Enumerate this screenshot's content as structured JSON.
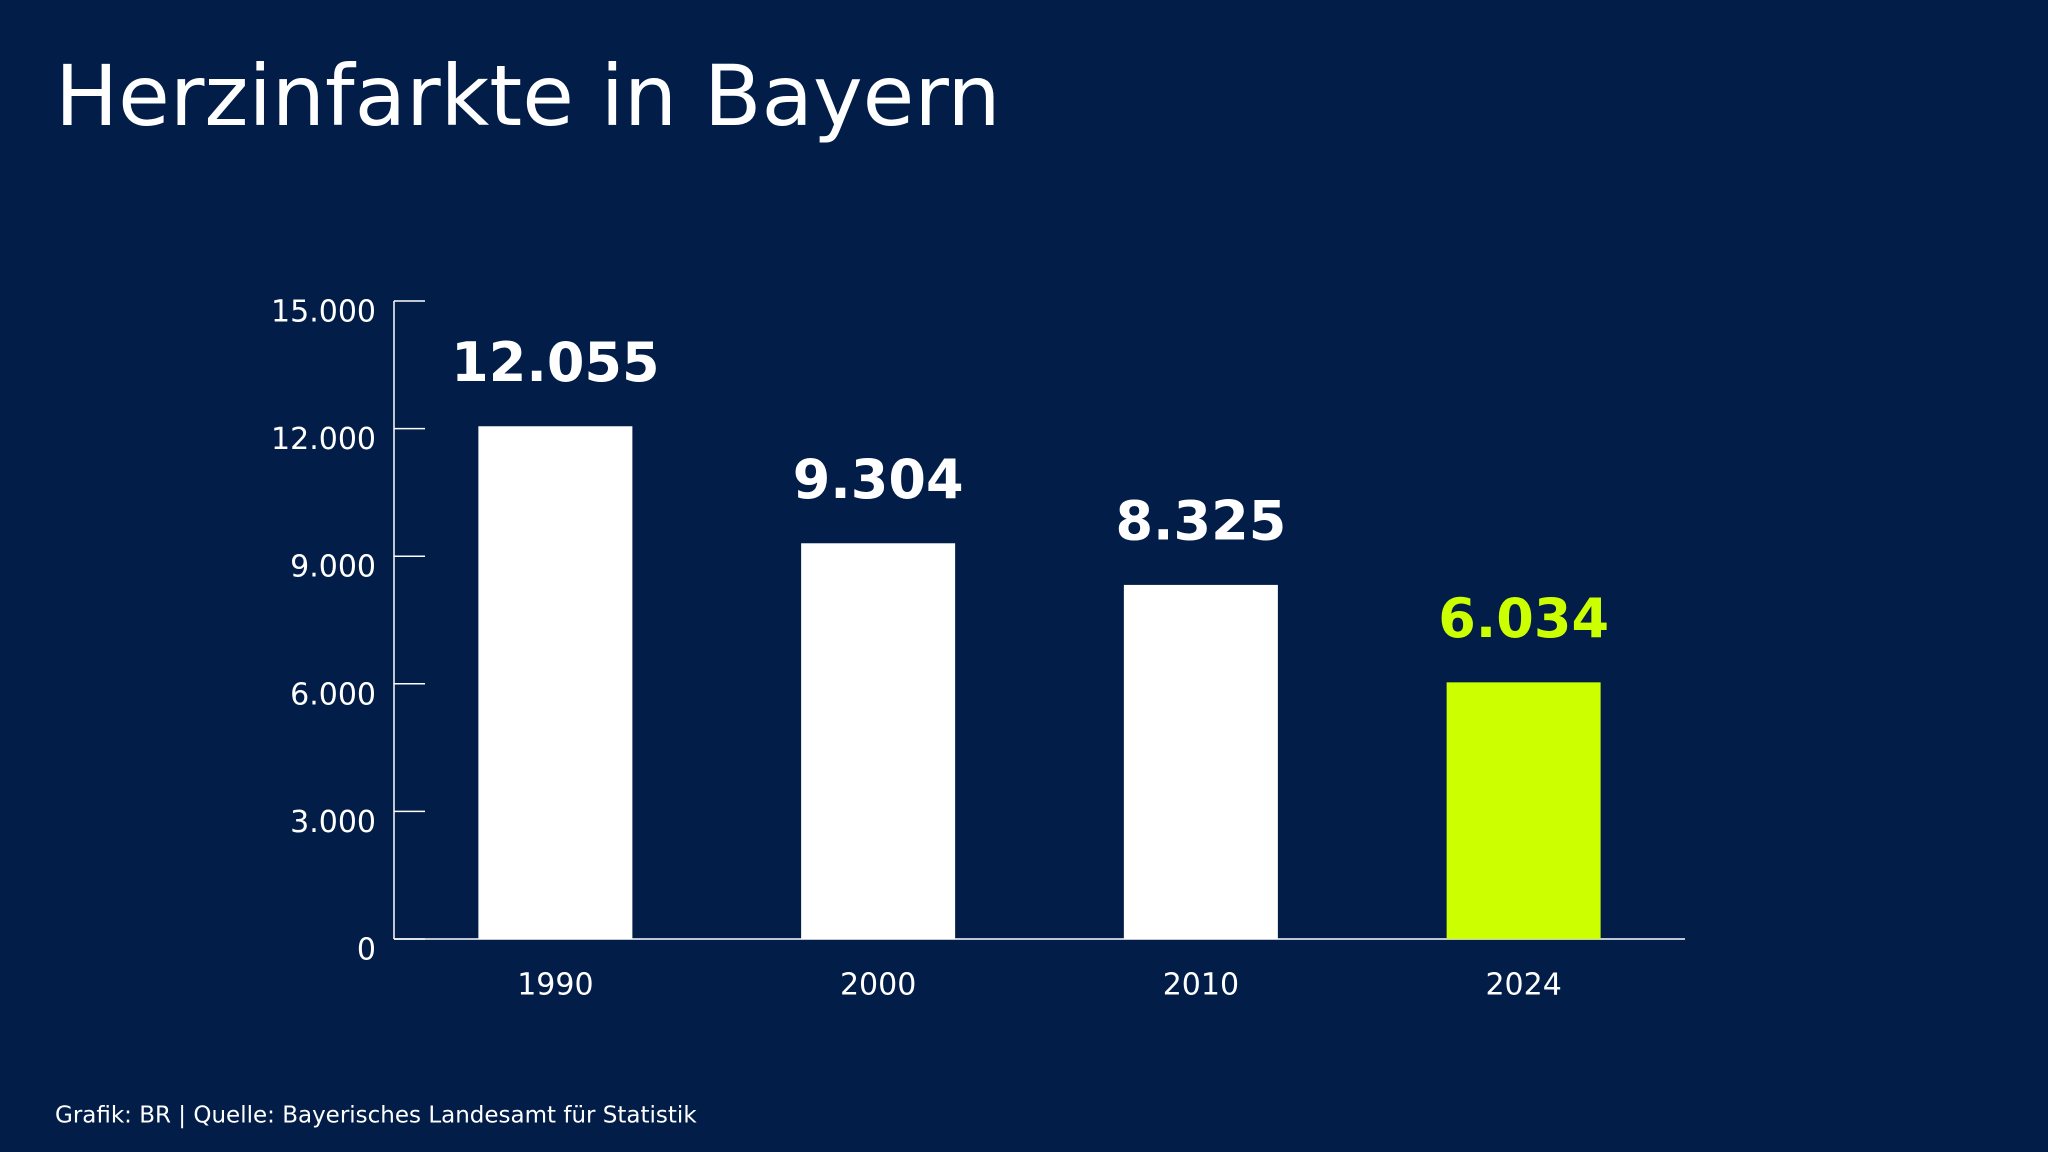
{
  "chart_data": {
    "type": "bar",
    "title": "Herzinfarkte in Bayern",
    "categories": [
      "1990",
      "2000",
      "2010",
      "2024"
    ],
    "values": [
      12055,
      9304,
      8325,
      6034
    ],
    "value_labels": [
      "12.055",
      "9.304",
      "8.325",
      "6.034"
    ],
    "colors": [
      "#ffffff",
      "#ffffff",
      "#ffffff",
      "#ccff00"
    ],
    "ylim": [
      0,
      15000
    ],
    "yticks": [
      0,
      {
        "value": 3000,
        "label": "3.000"
      },
      {
        "value": 6000,
        "label": "6.000"
      },
      {
        "value": 9000,
        "label": "9.000"
      },
      {
        "value": 12000,
        "label": "12.000"
      },
      {
        "value": 15000,
        "label": "15.000"
      }
    ],
    "grid": false,
    "source": "Grafik: BR | Quelle: Bayerisches Landesamt für Statistik"
  }
}
